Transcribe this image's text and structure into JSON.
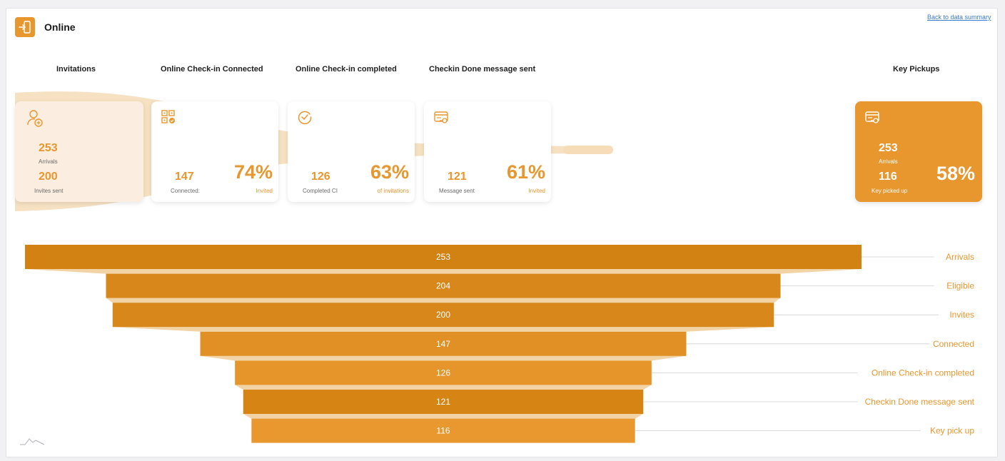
{
  "header": {
    "title": "Online",
    "icon": "login-door-icon",
    "back_link": "Back to data summary"
  },
  "columns": {
    "invitations": "Invitations",
    "connected": "Online Check-in Connected",
    "completed": "Online Check-in completed",
    "message": "Checkin Done message sent",
    "key": "Key Pickups"
  },
  "cards": {
    "invitations": {
      "icon": "user-add-icon",
      "arrivals": "253",
      "arrivals_label": "Arrivals",
      "sent": "200",
      "sent_label": "Invites sent"
    },
    "connected": {
      "icon": "qr-code-icon",
      "value": "147",
      "value_label": "Connected:",
      "percent": "74%",
      "percent_label": "Invited"
    },
    "completed": {
      "icon": "check-circle-icon",
      "value": "126",
      "value_label": "Completed CI",
      "percent": "63%",
      "percent_label": "of invitations"
    },
    "message": {
      "icon": "key-card-icon",
      "value": "121",
      "value_label": "Message sent",
      "percent": "61%",
      "percent_label": "Invited"
    },
    "key": {
      "icon": "key-card-icon",
      "arrivals": "253",
      "arrivals_label": "Arrivals",
      "picked": "116",
      "picked_label": "Key picked up",
      "percent": "58%"
    }
  },
  "colors": {
    "accent": "#e8962e",
    "funnel_dark": "#d28213",
    "funnel_light": "#e8982e",
    "connector": "#f2d3a6",
    "light_card": "#fbeee0",
    "link": "#3a7bd5"
  },
  "chart_data": {
    "type": "funnel",
    "categories": [
      "Arrivals",
      "Eligible",
      "Invites",
      "Connected",
      "Online Check-in completed",
      "Checkin Done message sent",
      "Key pick up"
    ],
    "values": [
      253,
      204,
      200,
      147,
      126,
      121,
      116
    ],
    "colors": [
      "#d28213",
      "#d8871a",
      "#d8871a",
      "#e09024",
      "#e59529",
      "#d68514",
      "#e8982e"
    ]
  },
  "corner_icon": "mountain-chart-icon"
}
